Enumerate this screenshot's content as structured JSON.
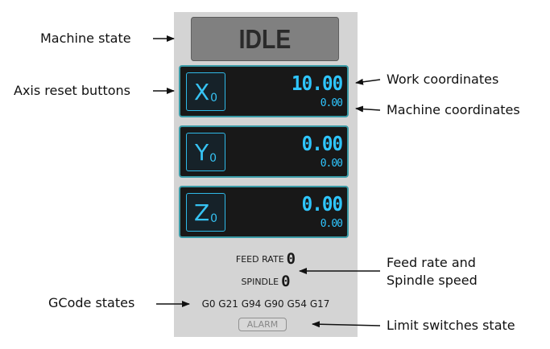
{
  "machine_state": "IDLE",
  "axes": [
    {
      "letter": "X",
      "sub": "0",
      "work": "10.00",
      "machine": "0.00"
    },
    {
      "letter": "Y",
      "sub": "0",
      "work": "0.00",
      "machine": "0.00"
    },
    {
      "letter": "Z",
      "sub": "0",
      "work": "0.00",
      "machine": "0.00"
    }
  ],
  "feed": {
    "label": "FEED RATE",
    "value": "0"
  },
  "spindle": {
    "label": "SPINDLE",
    "value": "0"
  },
  "gcode_states": "G0 G21 G94 G90 G54 G17",
  "alarm": "ALARM",
  "annotations": {
    "machine_state": "Machine state",
    "axis_reset": "Axis reset buttons",
    "work_coords": "Work coordinates",
    "machine_coords": "Machine coordinates",
    "feed_spindle_1": "Feed rate and",
    "feed_spindle_2": "Spindle speed",
    "gcode": "GCode states",
    "limit": "Limit switches state"
  },
  "colors": {
    "panel_bg": "#d4d4d4",
    "state_bg": "#808080",
    "axis_bg": "#181818",
    "axis_border": "#3a9aa6",
    "digit": "#2fc6ff"
  }
}
